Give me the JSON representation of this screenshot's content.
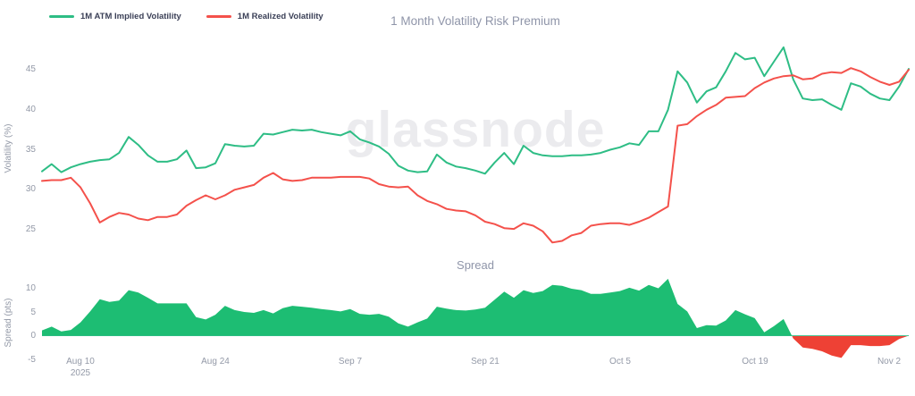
{
  "header": {
    "title": "1 Month Volatility Risk Premium",
    "legend": [
      {
        "label": "1M ATM Implied Volatility",
        "color": "#2ebd85"
      },
      {
        "label": "1M Realized Volatility",
        "color": "#f4514b"
      }
    ]
  },
  "watermark": {
    "text": "glassnode",
    "color": "#ebebee"
  },
  "top_chart": {
    "ylabel": "Volatility (%)",
    "yticks": [
      45,
      40,
      35,
      30,
      25
    ]
  },
  "bottom_chart": {
    "title": "Spread",
    "ylabel": "Spread (pts)",
    "yticks": [
      10,
      5,
      0,
      -5
    ]
  },
  "x_axis": {
    "ticks": [
      {
        "label": "Aug 10",
        "day": 4
      },
      {
        "label": "Aug 24",
        "day": 18
      },
      {
        "label": "Sep 7",
        "day": 32
      },
      {
        "label": "Sep 21",
        "day": 46
      },
      {
        "label": "Oct 5",
        "day": 60
      },
      {
        "label": "Oct 19",
        "day": 74
      },
      {
        "label": "Nov 2",
        "day": 88
      }
    ],
    "year": "2025"
  },
  "colors": {
    "implied": "#2ebd85",
    "realized": "#f4514b",
    "spread_positive": "#1dbd73",
    "spread_negative": "#ee4135",
    "zero_line": "#2ebd85",
    "axis_text": "#9399a7",
    "title_text": "#8f95a9"
  },
  "chart_data": [
    {
      "type": "line",
      "title": "1 Month Volatility Risk Premium",
      "ylabel": "Volatility (%)",
      "ylim": [
        22,
        48
      ],
      "x_start": "Aug 6, 2025",
      "x_end": "Nov 4, 2025",
      "x_unit": "daily",
      "grid": false,
      "legend_position": "top-left",
      "series": [
        {
          "name": "1M ATM Implied Volatility",
          "color": "#2ebd85",
          "values": [
            32.3,
            33.2,
            32.2,
            32.8,
            33.2,
            33.5,
            33.7,
            33.8,
            34.6,
            36.6,
            35.6,
            34.3,
            33.5,
            33.5,
            33.8,
            34.9,
            32.7,
            32.8,
            33.3,
            35.7,
            35.5,
            35.4,
            35.5,
            37.0,
            36.9,
            37.2,
            37.5,
            37.4,
            37.5,
            37.2,
            37.0,
            36.8,
            37.3,
            36.3,
            35.9,
            35.4,
            34.5,
            33.0,
            32.4,
            32.2,
            32.3,
            34.4,
            33.4,
            32.9,
            32.7,
            32.4,
            32.0,
            33.4,
            34.6,
            33.2,
            35.5,
            34.6,
            34.3,
            34.2,
            34.2,
            34.3,
            34.3,
            34.4,
            34.6,
            35.0,
            35.3,
            35.8,
            35.6,
            37.3,
            37.3,
            40.0,
            44.8,
            43.4,
            40.9,
            42.3,
            42.8,
            44.8,
            47.1,
            46.3,
            46.5,
            44.2,
            46.0,
            47.8,
            43.8,
            41.4,
            41.2,
            41.3,
            40.6,
            40.0,
            43.3,
            42.9,
            42.0,
            41.4,
            41.2,
            42.9,
            45.1
          ]
        },
        {
          "name": "1M Realized Volatility",
          "color": "#f4514b",
          "values": [
            31.1,
            31.2,
            31.2,
            31.5,
            30.3,
            28.3,
            25.9,
            26.6,
            27.1,
            26.9,
            26.4,
            26.2,
            26.6,
            26.6,
            26.9,
            28.0,
            28.7,
            29.3,
            28.8,
            29.3,
            30.0,
            30.3,
            30.6,
            31.5,
            32.1,
            31.3,
            31.1,
            31.2,
            31.5,
            31.5,
            31.5,
            31.6,
            31.6,
            31.6,
            31.4,
            30.7,
            30.4,
            30.3,
            30.4,
            29.3,
            28.6,
            28.2,
            27.6,
            27.4,
            27.3,
            26.8,
            26.0,
            25.7,
            25.2,
            25.1,
            25.8,
            25.5,
            24.8,
            23.4,
            23.6,
            24.3,
            24.6,
            25.5,
            25.7,
            25.8,
            25.8,
            25.6,
            26.0,
            26.5,
            27.2,
            27.9,
            38.0,
            38.2,
            39.2,
            40.0,
            40.6,
            41.5,
            41.6,
            41.7,
            42.7,
            43.4,
            43.9,
            44.2,
            44.3,
            43.8,
            43.9,
            44.5,
            44.7,
            44.6,
            45.2,
            44.8,
            44.1,
            43.5,
            43.1,
            43.5,
            45.0
          ]
        }
      ]
    },
    {
      "type": "area",
      "title": "Spread",
      "ylabel": "Spread (pts)",
      "ylim": [
        -5,
        12.5
      ],
      "x_start": "Aug 6, 2025",
      "x_end": "Nov 4, 2025",
      "x_unit": "daily",
      "grid": false,
      "positive_color": "#1dbd73",
      "negative_color": "#ee4135",
      "values": [
        1.2,
        2.0,
        1.0,
        1.3,
        2.9,
        5.2,
        7.8,
        7.2,
        7.5,
        9.7,
        9.2,
        8.1,
        6.9,
        6.9,
        6.9,
        6.9,
        4.0,
        3.5,
        4.5,
        6.4,
        5.5,
        5.1,
        4.9,
        5.5,
        4.8,
        5.9,
        6.4,
        6.2,
        6.0,
        5.7,
        5.5,
        5.2,
        5.7,
        4.7,
        4.5,
        4.7,
        4.1,
        2.7,
        2.0,
        2.9,
        3.7,
        6.2,
        5.8,
        5.5,
        5.4,
        5.6,
        6.0,
        7.7,
        9.4,
        8.1,
        9.7,
        9.1,
        9.5,
        10.8,
        10.6,
        10.0,
        9.7,
        8.9,
        8.9,
        9.2,
        9.5,
        10.2,
        9.6,
        10.8,
        10.1,
        12.1,
        6.8,
        5.2,
        1.7,
        2.3,
        2.2,
        3.3,
        5.5,
        4.6,
        3.8,
        0.8,
        2.1,
        3.6,
        -0.5,
        -2.4,
        -2.7,
        -3.2,
        -4.1,
        -4.6,
        -1.9,
        -1.9,
        -2.1,
        -2.1,
        -1.9,
        -0.6,
        0.1
      ]
    }
  ]
}
